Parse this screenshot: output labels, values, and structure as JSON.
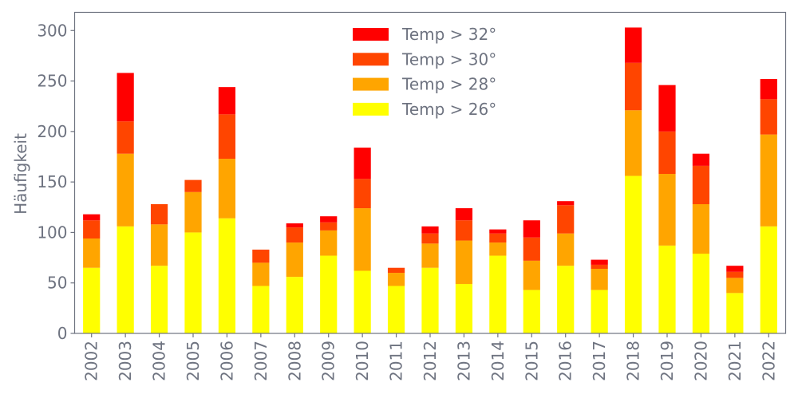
{
  "chart_data": {
    "type": "bar",
    "stacked": true,
    "title": "",
    "xlabel": "",
    "ylabel": "Häufigkeit",
    "ylim": [
      0,
      318
    ],
    "yticks": [
      0,
      50,
      100,
      150,
      200,
      250,
      300
    ],
    "grid": false,
    "legend_position": "top-center",
    "categories": [
      "2002",
      "2003",
      "2004",
      "2005",
      "2006",
      "2007",
      "2008",
      "2009",
      "2010",
      "2011",
      "2012",
      "2013",
      "2014",
      "2015",
      "2016",
      "2017",
      "2018",
      "2019",
      "2020",
      "2021",
      "2022"
    ],
    "series": [
      {
        "name": "Temp > 26°",
        "color": "#ffff00",
        "values": [
          65,
          106,
          67,
          100,
          114,
          47,
          56,
          77,
          62,
          47,
          65,
          49,
          77,
          43,
          67,
          43,
          156,
          87,
          79,
          40,
          106
        ]
      },
      {
        "name": "Temp > 28°",
        "color": "#ffa500",
        "values": [
          29,
          72,
          41,
          40,
          59,
          23,
          34,
          25,
          62,
          13,
          24,
          43,
          13,
          29,
          32,
          21,
          65,
          71,
          49,
          15,
          91
        ]
      },
      {
        "name": "Temp > 30°",
        "color": "#ff4500",
        "values": [
          18,
          32,
          20,
          12,
          44,
          13,
          15,
          8,
          29,
          5,
          10,
          20,
          9,
          23,
          28,
          4,
          47,
          42,
          38,
          6,
          35
        ]
      },
      {
        "name": "Temp > 32°",
        "color": "#ff0000",
        "values": [
          6,
          48,
          0,
          0,
          27,
          0,
          4,
          6,
          31,
          0,
          7,
          12,
          4,
          17,
          4,
          5,
          35,
          46,
          12,
          6,
          20
        ]
      }
    ]
  }
}
